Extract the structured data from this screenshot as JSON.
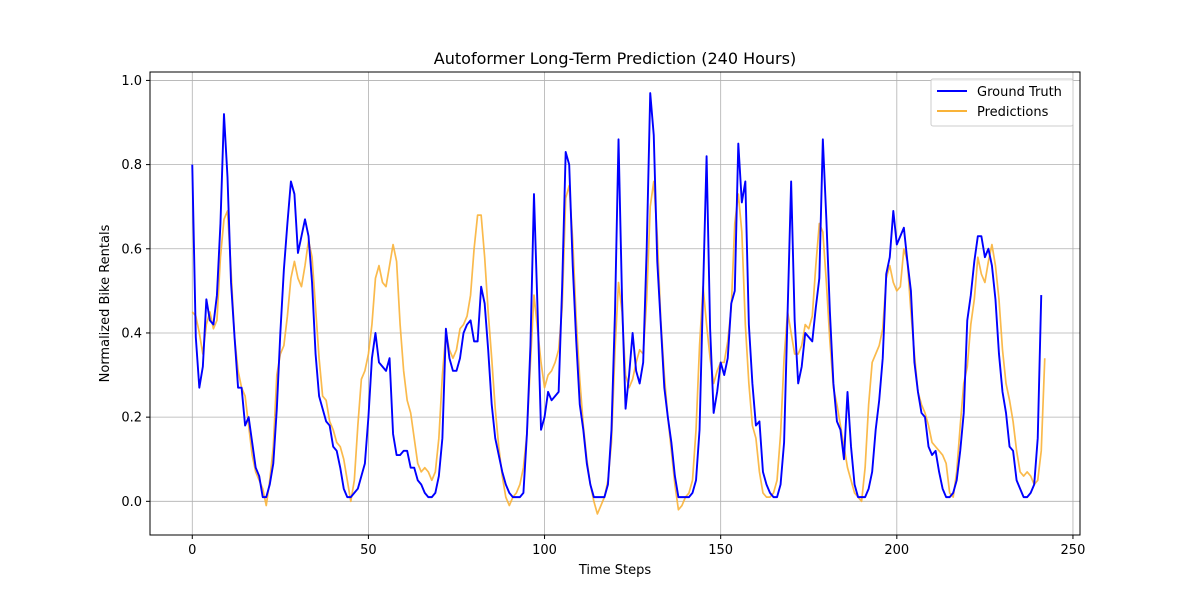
{
  "chart_data": {
    "type": "line",
    "title": "Autoformer Long-Term Prediction (240 Hours)",
    "xlabel": "Time Steps",
    "ylabel": "Normalized Bike Rentals",
    "xlim": [
      -12,
      252
    ],
    "ylim": [
      -0.08,
      1.02
    ],
    "xticks": [
      0,
      50,
      100,
      150,
      200,
      250
    ],
    "yticks": [
      0.0,
      0.2,
      0.4,
      0.6,
      0.8,
      1.0
    ],
    "xtick_labels": [
      "0",
      "50",
      "100",
      "150",
      "200",
      "250"
    ],
    "ytick_labels": [
      "0.0",
      "0.2",
      "0.4",
      "0.6",
      "0.8",
      "1.0"
    ],
    "grid": true,
    "legend_position": "top-right",
    "series": [
      {
        "name": "Ground Truth",
        "color": "#0000ff",
        "values": [
          0.8,
          0.39,
          0.27,
          0.32,
          0.48,
          0.43,
          0.42,
          0.49,
          0.66,
          0.92,
          0.77,
          0.52,
          0.39,
          0.27,
          0.27,
          0.18,
          0.2,
          0.14,
          0.08,
          0.06,
          0.01,
          0.01,
          0.04,
          0.09,
          0.22,
          0.4,
          0.55,
          0.66,
          0.76,
          0.73,
          0.59,
          0.63,
          0.67,
          0.63,
          0.52,
          0.35,
          0.25,
          0.22,
          0.19,
          0.18,
          0.13,
          0.12,
          0.08,
          0.03,
          0.01,
          0.01,
          0.02,
          0.03,
          0.06,
          0.09,
          0.2,
          0.34,
          0.4,
          0.33,
          0.32,
          0.31,
          0.34,
          0.16,
          0.11,
          0.11,
          0.12,
          0.12,
          0.08,
          0.08,
          0.05,
          0.04,
          0.02,
          0.01,
          0.01,
          0.02,
          0.06,
          0.15,
          0.41,
          0.34,
          0.31,
          0.31,
          0.34,
          0.4,
          0.42,
          0.43,
          0.38,
          0.38,
          0.51,
          0.47,
          0.36,
          0.23,
          0.15,
          0.11,
          0.07,
          0.04,
          0.02,
          0.01,
          0.01,
          0.01,
          0.02,
          0.16,
          0.37,
          0.73,
          0.46,
          0.17,
          0.2,
          0.26,
          0.24,
          0.25,
          0.26,
          0.51,
          0.83,
          0.8,
          0.56,
          0.38,
          0.23,
          0.17,
          0.09,
          0.04,
          0.01,
          0.01,
          0.01,
          0.01,
          0.04,
          0.17,
          0.45,
          0.86,
          0.48,
          0.22,
          0.3,
          0.4,
          0.31,
          0.28,
          0.33,
          0.6,
          0.97,
          0.87,
          0.57,
          0.42,
          0.27,
          0.2,
          0.14,
          0.06,
          0.01,
          0.01,
          0.01,
          0.01,
          0.02,
          0.05,
          0.17,
          0.5,
          0.82,
          0.41,
          0.21,
          0.26,
          0.33,
          0.3,
          0.34,
          0.47,
          0.5,
          0.85,
          0.71,
          0.76,
          0.42,
          0.28,
          0.18,
          0.19,
          0.07,
          0.04,
          0.02,
          0.01,
          0.01,
          0.04,
          0.14,
          0.45,
          0.76,
          0.43,
          0.28,
          0.32,
          0.4,
          0.39,
          0.38,
          0.46,
          0.53,
          0.86,
          0.67,
          0.45,
          0.28,
          0.19,
          0.17,
          0.1,
          0.26,
          0.13,
          0.04,
          0.01,
          0.01,
          0.01,
          0.03,
          0.07,
          0.17,
          0.24,
          0.34,
          0.54,
          0.58,
          0.69,
          0.61,
          0.63,
          0.65,
          0.57,
          0.5,
          0.33,
          0.26,
          0.21,
          0.2,
          0.13,
          0.11,
          0.12,
          0.07,
          0.03,
          0.01,
          0.01,
          0.02,
          0.05,
          0.12,
          0.21,
          0.43,
          0.49,
          0.57,
          0.63,
          0.63,
          0.58,
          0.6,
          0.56,
          0.48,
          0.35,
          0.26,
          0.21,
          0.13,
          0.12,
          0.05,
          0.03,
          0.01,
          0.01,
          0.02,
          0.04,
          0.15,
          0.49
        ]
      },
      {
        "name": "Predictions",
        "color": "#f9b339",
        "values": [
          0.45,
          0.44,
          0.4,
          0.35,
          0.42,
          0.45,
          0.41,
          0.43,
          0.58,
          0.67,
          0.69,
          0.55,
          0.39,
          0.31,
          0.27,
          0.25,
          0.18,
          0.11,
          0.07,
          0.05,
          0.03,
          -0.01,
          0.05,
          0.13,
          0.3,
          0.35,
          0.37,
          0.44,
          0.53,
          0.57,
          0.53,
          0.51,
          0.56,
          0.62,
          0.58,
          0.46,
          0.34,
          0.25,
          0.24,
          0.19,
          0.17,
          0.14,
          0.13,
          0.1,
          0.05,
          0.0,
          0.05,
          0.18,
          0.29,
          0.31,
          0.35,
          0.42,
          0.53,
          0.56,
          0.52,
          0.51,
          0.56,
          0.61,
          0.57,
          0.42,
          0.31,
          0.24,
          0.21,
          0.15,
          0.09,
          0.07,
          0.08,
          0.07,
          0.05,
          0.07,
          0.15,
          0.3,
          0.4,
          0.36,
          0.34,
          0.36,
          0.41,
          0.42,
          0.44,
          0.49,
          0.6,
          0.68,
          0.68,
          0.58,
          0.45,
          0.34,
          0.22,
          0.13,
          0.06,
          0.01,
          -0.01,
          0.01,
          0.02,
          0.04,
          0.08,
          0.16,
          0.33,
          0.49,
          0.41,
          0.33,
          0.27,
          0.3,
          0.31,
          0.33,
          0.36,
          0.46,
          0.72,
          0.75,
          0.62,
          0.43,
          0.29,
          0.18,
          0.1,
          0.04,
          0.0,
          -0.03,
          -0.01,
          0.01,
          0.05,
          0.14,
          0.36,
          0.52,
          0.45,
          0.3,
          0.27,
          0.29,
          0.33,
          0.36,
          0.35,
          0.48,
          0.7,
          0.76,
          0.63,
          0.43,
          0.3,
          0.2,
          0.12,
          0.04,
          -0.02,
          -0.01,
          0.01,
          0.02,
          0.05,
          0.17,
          0.37,
          0.51,
          0.42,
          0.34,
          0.28,
          0.31,
          0.33,
          0.33,
          0.38,
          0.46,
          0.66,
          0.73,
          0.64,
          0.42,
          0.28,
          0.18,
          0.15,
          0.07,
          0.02,
          0.01,
          0.01,
          0.02,
          0.05,
          0.16,
          0.34,
          0.45,
          0.4,
          0.35,
          0.35,
          0.37,
          0.42,
          0.41,
          0.44,
          0.56,
          0.66,
          0.64,
          0.52,
          0.38,
          0.27,
          0.23,
          0.18,
          0.13,
          0.08,
          0.05,
          0.02,
          0.01,
          0.0,
          0.08,
          0.23,
          0.33,
          0.35,
          0.37,
          0.41,
          0.53,
          0.56,
          0.52,
          0.5,
          0.51,
          0.6,
          0.57,
          0.45,
          0.35,
          0.26,
          0.23,
          0.21,
          0.18,
          0.14,
          0.13,
          0.12,
          0.11,
          0.09,
          0.02,
          0.01,
          0.07,
          0.18,
          0.28,
          0.32,
          0.42,
          0.48,
          0.58,
          0.54,
          0.52,
          0.57,
          0.61,
          0.56,
          0.48,
          0.36,
          0.28,
          0.24,
          0.19,
          0.12,
          0.07,
          0.06,
          0.07,
          0.06,
          0.04,
          0.05,
          0.12,
          0.34
        ]
      }
    ]
  }
}
